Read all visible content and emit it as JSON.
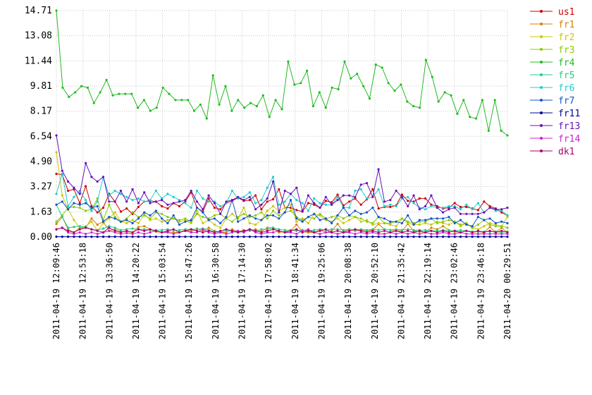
{
  "chart_data": {
    "type": "line",
    "title": "",
    "xlabel": "",
    "ylabel": "",
    "ylim": [
      0,
      14.71
    ],
    "yticks": [
      "0.00",
      "1.63",
      "3.27",
      "4.90",
      "6.54",
      "8.17",
      "9.81",
      "11.44",
      "13.08",
      "14.71"
    ],
    "ytick_values": [
      0,
      1.63,
      3.27,
      4.9,
      6.54,
      8.17,
      9.81,
      11.44,
      13.08,
      14.71
    ],
    "xticks": [
      "2011-04-19 12:09:46",
      "2011-04-19 12:53:18",
      "2011-04-19 13:36:50",
      "2011-04-19 14:20:22",
      "2011-04-19 15:03:54",
      "2011-04-19 15:47:26",
      "2011-04-19 16:30:58",
      "2011-04-19 17:14:30",
      "2011-04-19 17:58:02",
      "2011-04-19 18:41:34",
      "2011-04-19 19:25:06",
      "2011-04-19 20:08:38",
      "2011-04-19 20:52:10",
      "2011-04-19 21:35:42",
      "2011-04-19 22:19:14",
      "2011-04-19 23:02:46",
      "2011-04-19 23:46:18",
      "2011-04-20 00:29:51"
    ],
    "grid": true,
    "legend_position": "right",
    "series": [
      {
        "name": "us1",
        "color": "#cc0000",
        "values": [
          4.1,
          4.05,
          3.0,
          3.1,
          2.2,
          3.3,
          2.0,
          1.6,
          1.9,
          2.8,
          2.3,
          1.65,
          1.85,
          1.5,
          1.95,
          2.3,
          2.35,
          2.3,
          2.0,
          1.85,
          2.2,
          2.0,
          2.3,
          2.9,
          1.9,
          1.65,
          2.5,
          1.9,
          1.8,
          2.2,
          2.35,
          2.55,
          2.35,
          2.4,
          2.7,
          1.8,
          2.3,
          2.45,
          3.1,
          1.9,
          1.9,
          1.75,
          1.65,
          2.2,
          2.1,
          1.9,
          2.35,
          2.25,
          2.75,
          2.05,
          2.3,
          2.5,
          2.1,
          2.45,
          3.1,
          1.85,
          1.95,
          1.95,
          2.05,
          2.75,
          2.35,
          2.3,
          2.5,
          2.5,
          2.1,
          2.0,
          1.85,
          1.9,
          2.2,
          1.95,
          1.95,
          1.85,
          1.75,
          2.3,
          2.0,
          1.85,
          1.6,
          1.4
        ]
      },
      {
        "name": "fr1",
        "color": "#d4800a",
        "values": [
          0.85,
          1.3,
          0.5,
          0.3,
          0.6,
          0.6,
          1.2,
          0.8,
          1.0,
          0.4,
          0.5,
          0.35,
          0.35,
          0.3,
          0.65,
          0.7,
          0.5,
          0.35,
          0.3,
          0.35,
          0.3,
          0.3,
          0.45,
          0.35,
          0.55,
          0.4,
          0.6,
          0.4,
          0.3,
          0.3,
          0.5,
          0.35,
          0.45,
          0.4,
          0.5,
          0.35,
          0.6,
          0.6,
          0.3,
          0.35,
          0.4,
          0.8,
          0.35,
          0.3,
          0.3,
          0.45,
          0.3,
          0.4,
          0.85,
          0.35,
          0.5,
          0.4,
          0.45,
          0.4,
          0.45,
          0.85,
          0.5,
          0.45,
          0.4,
          0.4,
          0.85,
          0.4,
          0.35,
          0.3,
          0.6,
          0.5,
          0.7,
          0.45,
          0.35,
          0.3,
          0.4,
          0.3,
          0.35,
          0.3,
          0.65,
          0.3,
          0.6,
          0.3
        ]
      },
      {
        "name": "fr2",
        "color": "#c8c800",
        "values": [
          5.5,
          2.7,
          1.8,
          1.1,
          0.6,
          0.7,
          1.0,
          0.4,
          0.9,
          1.2,
          1.6,
          1.0,
          0.9,
          1.1,
          0.9,
          1.5,
          1.1,
          1.2,
          1.0,
          1.1,
          1.2,
          1.0,
          1.1,
          0.9,
          1.7,
          0.9,
          1.1,
          0.8,
          0.6,
          1.2,
          1.5,
          1.2,
          1.9,
          0.9,
          0.8,
          1.1,
          1.7,
          2.0,
          1.7,
          1.9,
          2.1,
          1.0,
          1.2,
          0.9,
          1.5,
          1.4,
          1.1,
          1.0,
          1.2,
          0.9,
          1.1,
          1.3,
          1.0,
          1.1,
          0.8,
          0.9,
          0.9,
          0.8,
          0.7,
          1.2,
          0.9,
          0.8,
          0.8,
          0.9,
          0.8,
          1.0,
          0.9,
          0.8,
          1.0,
          0.7,
          0.9,
          0.6,
          0.5,
          0.7,
          0.9,
          0.8,
          0.7,
          1.3
        ]
      },
      {
        "name": "fr3",
        "color": "#88cc00",
        "values": [
          1.0,
          1.4,
          1.9,
          1.95,
          1.9,
          1.7,
          1.8,
          2.5,
          1.1,
          2.1,
          1.3,
          1.0,
          1.2,
          1.6,
          1.3,
          1.4,
          1.2,
          1.6,
          1.5,
          1.3,
          1.2,
          1.1,
          1.2,
          1.0,
          1.5,
          1.3,
          1.2,
          1.4,
          1.5,
          1.2,
          1.0,
          1.3,
          1.5,
          1.3,
          1.4,
          1.6,
          1.2,
          1.7,
          1.4,
          1.6,
          1.7,
          1.3,
          1.1,
          1.3,
          1.2,
          1.5,
          1.2,
          1.3,
          1.4,
          1.2,
          1.4,
          1.3,
          1.2,
          1.0,
          0.9,
          1.3,
          0.9,
          0.9,
          1.0,
          1.2,
          1.0,
          0.9,
          1.0,
          1.0,
          1.2,
          0.9,
          1.0,
          1.1,
          1.0,
          0.8,
          0.9,
          0.6,
          0.8,
          1.1,
          0.8,
          0.7,
          0.7,
          0.6
        ]
      },
      {
        "name": "fr4",
        "color": "#22bb22",
        "values": [
          14.71,
          9.7,
          9.1,
          9.4,
          9.8,
          9.7,
          8.7,
          9.4,
          10.2,
          9.2,
          9.3,
          9.3,
          9.3,
          8.4,
          8.9,
          8.2,
          8.4,
          9.7,
          9.3,
          8.9,
          8.9,
          8.9,
          8.2,
          8.6,
          7.7,
          10.5,
          8.6,
          9.8,
          8.2,
          8.9,
          8.4,
          8.7,
          8.5,
          9.2,
          7.8,
          8.9,
          8.3,
          11.4,
          9.9,
          10.0,
          10.8,
          8.5,
          9.4,
          8.4,
          9.7,
          9.6,
          11.4,
          10.3,
          10.6,
          9.8,
          9.0,
          11.2,
          11.0,
          10.0,
          9.5,
          9.9,
          8.8,
          8.5,
          8.4,
          11.5,
          10.4,
          8.8,
          9.4,
          9.2,
          8.0,
          8.9,
          7.8,
          7.7,
          8.9,
          6.9,
          8.9,
          6.9,
          6.6
        ]
      },
      {
        "name": "fr5",
        "color": "#22cc88",
        "values": [
          2.1,
          1.3,
          0.6,
          0.65,
          0.7,
          0.65,
          0.5,
          0.45,
          0.55,
          0.7,
          0.6,
          0.45,
          0.5,
          0.55,
          0.5,
          0.5,
          0.45,
          0.45,
          0.45,
          0.5,
          0.45,
          0.45,
          0.5,
          0.5,
          0.5,
          0.55,
          0.45,
          0.35,
          0.3,
          0.45,
          0.35,
          0.3,
          0.35,
          0.45,
          0.35,
          0.5,
          0.5,
          0.6,
          0.5,
          0.45,
          0.45,
          0.4,
          0.45,
          0.4,
          0.45,
          0.5,
          0.45,
          0.5,
          0.5,
          0.45,
          0.5,
          0.45,
          0.5,
          0.45,
          0.5,
          0.45,
          0.5,
          0.45,
          0.5,
          0.45,
          0.5,
          0.45,
          0.45,
          0.45,
          0.4,
          0.4,
          0.45,
          0.4,
          0.4,
          0.45,
          0.4,
          0.35,
          0.35,
          0.35,
          0.35,
          0.35,
          0.3,
          0.35
        ]
      },
      {
        "name": "fr6",
        "color": "#22cccc",
        "values": [
          2.8,
          4.1,
          2.0,
          2.6,
          3.0,
          2.4,
          1.7,
          2.3,
          3.9,
          2.7,
          3.0,
          2.8,
          2.6,
          2.4,
          2.5,
          2.3,
          2.4,
          3.0,
          2.5,
          2.8,
          2.6,
          2.4,
          2.2,
          1.9,
          3.0,
          2.5,
          2.3,
          2.3,
          2.0,
          2.2,
          3.0,
          2.5,
          2.6,
          2.9,
          2.2,
          2.4,
          3.2,
          3.9,
          2.1,
          2.3,
          2.8,
          2.4,
          2.2,
          1.7,
          2.5,
          2.2,
          2.1,
          2.1,
          2.6,
          1.9,
          1.9,
          3.0,
          3.1,
          2.5,
          2.6,
          3.1,
          2.0,
          2.1,
          2.0,
          2.5,
          2.6,
          2.2,
          1.9,
          1.8,
          2.0,
          1.9,
          1.9,
          2.0,
          2.0,
          1.8,
          2.1,
          1.8,
          2.2,
          1.6,
          1.9,
          1.7,
          1.7,
          1.4
        ]
      },
      {
        "name": "fr7",
        "color": "#1155cc",
        "values": [
          2.1,
          2.3,
          1.8,
          2.2,
          2.1,
          2.2,
          1.9,
          2.0,
          1.0,
          1.3,
          1.2,
          1.0,
          1.1,
          0.9,
          1.2,
          1.6,
          1.4,
          1.7,
          1.2,
          0.9,
          1.4,
          0.8,
          1.0,
          1.1,
          1.9,
          1.6,
          1.1,
          1.2,
          0.9,
          1.3,
          2.4,
          1.0,
          1.2,
          1.4,
          1.2,
          1.1,
          1.4,
          1.4,
          1.2,
          1.6,
          2.4,
          1.2,
          1.0,
          1.3,
          1.5,
          1.1,
          1.2,
          0.9,
          1.4,
          1.9,
          1.4,
          1.7,
          1.5,
          1.6,
          1.9,
          1.3,
          1.2,
          1.0,
          1.0,
          0.9,
          1.4,
          0.8,
          1.1,
          1.1,
          1.2,
          1.2,
          1.2,
          1.3,
          0.9,
          1.1,
          0.8,
          0.7,
          1.3,
          1.1,
          1.2,
          0.9,
          1.0,
          0.9
        ]
      },
      {
        "name": "fr11",
        "color": "#000099",
        "values": [
          0.02,
          0.02,
          0.02,
          0.02,
          0.02,
          0.02,
          0.02,
          0.02,
          0.02,
          0.02,
          0.02,
          0.02,
          0.02,
          0.02,
          0.02,
          0.02,
          0.02,
          0.02,
          0.02,
          0.02,
          0.02,
          0.02,
          0.02,
          0.02,
          0.02,
          0.02,
          0.02,
          0.02,
          0.02,
          0.02,
          0.02,
          0.02,
          0.02,
          0.02,
          0.02,
          0.02,
          0.02,
          0.02,
          0.02,
          0.02,
          0.02,
          0.02,
          0.02,
          0.02,
          0.02,
          0.02,
          0.02,
          0.02,
          0.02,
          0.02,
          0.02,
          0.02,
          0.02,
          0.02,
          0.02,
          0.02,
          0.02,
          0.02,
          0.02,
          0.02,
          0.02,
          0.02,
          0.02,
          0.02,
          0.02,
          0.02,
          0.02,
          0.02,
          0.02,
          0.02,
          0.02,
          0.02,
          0.02,
          0.02,
          0.02,
          0.02,
          0.02,
          0.02
        ]
      },
      {
        "name": "fr13",
        "color": "#6611bb",
        "values": [
          6.6,
          4.3,
          3.6,
          3.2,
          2.8,
          4.8,
          3.9,
          3.6,
          3.9,
          2.3,
          2.3,
          3.0,
          2.3,
          3.1,
          2.2,
          2.9,
          2.2,
          2.3,
          2.4,
          2.1,
          2.2,
          2.3,
          2.4,
          3.0,
          2.3,
          1.8,
          2.7,
          2.2,
          1.5,
          2.3,
          2.4,
          2.6,
          2.4,
          2.6,
          1.8,
          2.1,
          2.5,
          3.6,
          1.6,
          3.0,
          2.8,
          3.2,
          1.7,
          2.7,
          2.2,
          1.9,
          2.6,
          2.1,
          2.4,
          2.7,
          2.7,
          2.6,
          3.4,
          3.5,
          2.6,
          4.4,
          2.3,
          2.4,
          3.0,
          2.6,
          2.0,
          2.7,
          1.8,
          2.0,
          2.7,
          1.9,
          1.6,
          1.8,
          1.9,
          1.5,
          1.5,
          1.5,
          1.5,
          1.6,
          1.9,
          1.8,
          1.8,
          1.9
        ]
      },
      {
        "name": "fr14",
        "color": "#cc22cc",
        "values": [
          0.5,
          0.6,
          0.3,
          0.2,
          0.3,
          0.2,
          0.3,
          0.2,
          0.3,
          0.4,
          0.3,
          0.2,
          0.25,
          0.2,
          0.3,
          0.2,
          0.3,
          0.4,
          0.3,
          0.3,
          0.2,
          0.3,
          0.4,
          0.3,
          0.3,
          0.5,
          0.3,
          0.2,
          0.3,
          0.2,
          0.3,
          0.4,
          0.3,
          0.5,
          0.3,
          0.2,
          0.3,
          0.3,
          0.4,
          0.3,
          0.3,
          0.2,
          0.4,
          0.5,
          0.3,
          0.2,
          0.3,
          0.3,
          0.2,
          0.3,
          0.3,
          0.2,
          0.3,
          0.2,
          0.3,
          0.2,
          0.2,
          0.3,
          0.2,
          0.3,
          0.2,
          0.3,
          0.2,
          0.3,
          0.2,
          0.2,
          0.3,
          0.2,
          0.2,
          0.3,
          0.2,
          0.2,
          0.2,
          0.2,
          0.2,
          0.2,
          0.2,
          0.2
        ]
      },
      {
        "name": "dk1",
        "color": "#aa0066",
        "values": [
          0.5,
          0.6,
          0.4,
          0.3,
          0.5,
          0.6,
          0.5,
          0.4,
          0.3,
          0.6,
          0.4,
          0.3,
          0.4,
          0.3,
          0.5,
          0.4,
          0.5,
          0.4,
          0.3,
          0.4,
          0.5,
          0.3,
          0.4,
          0.5,
          0.4,
          0.3,
          0.4,
          0.3,
          0.4,
          0.5,
          0.4,
          0.3,
          0.4,
          0.5,
          0.4,
          0.3,
          0.4,
          0.5,
          0.4,
          0.3,
          0.4,
          0.5,
          0.3,
          0.4,
          0.3,
          0.4,
          0.5,
          0.3,
          0.4,
          0.3,
          0.4,
          0.5,
          0.4,
          0.3,
          0.4,
          0.3,
          0.4,
          0.3,
          0.4,
          0.3,
          0.4,
          0.3,
          0.4,
          0.3,
          0.4,
          0.3,
          0.4,
          0.3,
          0.4,
          0.3,
          0.4,
          0.3,
          0.4,
          0.3,
          0.4,
          0.3,
          0.4,
          0.3
        ]
      }
    ]
  }
}
